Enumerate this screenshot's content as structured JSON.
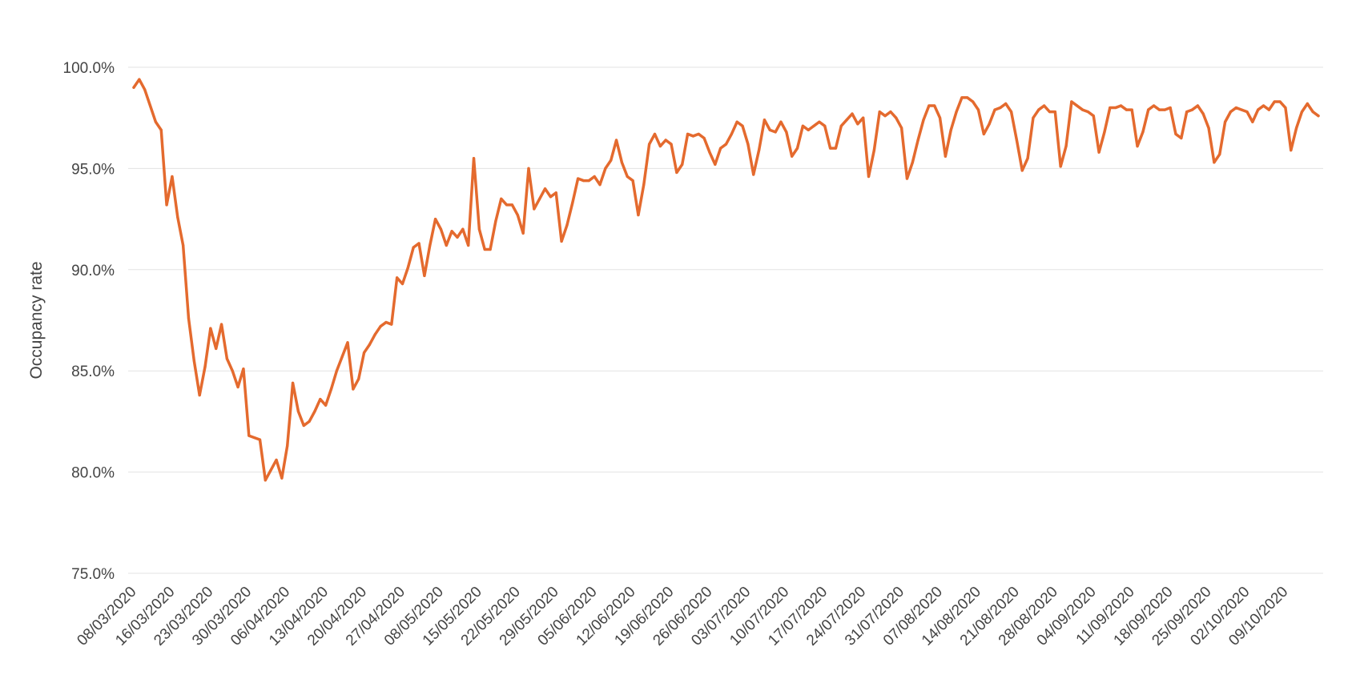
{
  "chart_data": {
    "type": "line",
    "title": "",
    "xlabel": "",
    "ylabel": "Occupancy rate",
    "ylim": [
      75,
      100
    ],
    "y_ticks": [
      "75.0%",
      "80.0%",
      "85.0%",
      "90.0%",
      "95.0%",
      "100.0%"
    ],
    "y_tick_values": [
      75,
      80,
      85,
      90,
      95,
      100
    ],
    "x_tick_labels": [
      "08/03/2020",
      "16/03/2020",
      "23/03/2020",
      "30/03/2020",
      "06/04/2020",
      "13/04/2020",
      "20/04/2020",
      "27/04/2020",
      "08/05/2020",
      "15/05/2020",
      "22/05/2020",
      "29/05/2020",
      "05/06/2020",
      "12/06/2020",
      "19/06/2020",
      "26/06/2020",
      "03/07/2020",
      "10/07/2020",
      "17/07/2020",
      "24/07/2020",
      "31/07/2020",
      "07/08/2020",
      "14/08/2020",
      "21/08/2020",
      "28/08/2020",
      "04/09/2020",
      "11/09/2020",
      "18/09/2020",
      "25/09/2020",
      "02/10/2020",
      "09/10/2020"
    ],
    "x_tick_index": [
      0,
      7,
      14,
      21,
      28,
      35,
      42,
      49,
      56,
      63,
      70,
      77,
      84,
      91,
      98,
      105,
      112,
      119,
      126,
      133,
      140,
      147,
      154,
      161,
      168,
      175,
      182,
      189,
      196,
      203,
      210
    ],
    "grid": true,
    "legend": "none",
    "series": [
      {
        "color": "#e46a2e",
        "values": [
          99.0,
          99.4,
          98.9,
          98.1,
          97.3,
          96.9,
          93.2,
          94.6,
          92.6,
          91.2,
          87.6,
          85.5,
          83.8,
          85.2,
          87.1,
          86.1,
          87.3,
          85.6,
          85.0,
          84.2,
          85.1,
          81.8,
          81.7,
          81.6,
          79.6,
          80.1,
          80.6,
          79.7,
          81.3,
          84.4,
          83.0,
          82.3,
          82.5,
          83.0,
          83.6,
          83.3,
          84.1,
          85.0,
          85.7,
          86.4,
          84.1,
          84.6,
          85.9,
          86.3,
          86.8,
          87.2,
          87.4,
          87.3,
          89.6,
          89.3,
          90.1,
          91.1,
          91.3,
          89.7,
          91.2,
          92.5,
          92.0,
          91.2,
          91.9,
          91.6,
          92.0,
          91.2,
          95.5,
          92.0,
          91.0,
          91.0,
          92.4,
          93.5,
          93.2,
          93.2,
          92.7,
          91.8,
          95.0,
          93.0,
          93.5,
          94.0,
          93.6,
          93.8,
          91.4,
          92.2,
          93.3,
          94.5,
          94.4,
          94.4,
          94.6,
          94.2,
          95.0,
          95.4,
          96.4,
          95.3,
          94.6,
          94.4,
          92.7,
          94.2,
          96.2,
          96.7,
          96.1,
          96.4,
          96.2,
          94.8,
          95.2,
          96.7,
          96.6,
          96.7,
          96.5,
          95.8,
          95.2,
          96.0,
          96.2,
          96.7,
          97.3,
          97.1,
          96.2,
          94.7,
          95.9,
          97.4,
          96.9,
          96.8,
          97.3,
          96.8,
          95.6,
          96.0,
          97.1,
          96.9,
          97.1,
          97.3,
          97.1,
          96.0,
          96.0,
          97.1,
          97.4,
          97.7,
          97.2,
          97.5,
          94.6,
          95.9,
          97.8,
          97.6,
          97.8,
          97.5,
          97.0,
          94.5,
          95.3,
          96.4,
          97.4,
          98.1,
          98.1,
          97.5,
          95.6,
          96.9,
          97.8,
          98.5,
          98.5,
          98.3,
          97.9,
          96.7,
          97.2,
          97.9,
          98.0,
          98.2,
          97.8,
          96.4,
          94.9,
          95.5,
          97.5,
          97.9,
          98.1,
          97.8,
          97.8,
          95.1,
          96.1,
          98.3,
          98.1,
          97.9,
          97.8,
          97.6,
          95.8,
          96.8,
          98.0,
          98.0,
          98.1,
          97.9,
          97.9,
          96.1,
          96.8,
          97.9,
          98.1,
          97.9,
          97.9,
          98.0,
          96.7,
          96.5,
          97.8,
          97.9,
          98.1,
          97.7,
          97.0,
          95.3,
          95.7,
          97.3,
          97.8,
          98.0,
          97.9,
          97.8,
          97.3,
          97.9,
          98.1,
          97.9,
          98.3,
          98.3,
          98.0,
          95.9,
          97.0,
          97.8,
          98.2,
          97.8,
          97.6
        ]
      }
    ]
  }
}
